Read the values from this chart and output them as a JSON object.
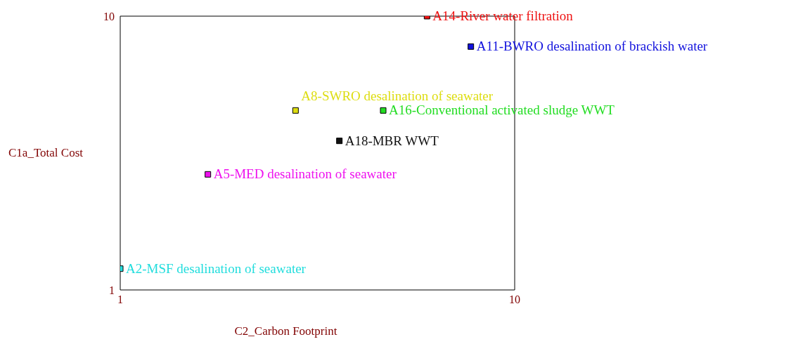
{
  "chart_data": {
    "type": "scatter",
    "xlabel": "C2_Carbon Footprint",
    "ylabel": "C1a_Total Cost",
    "xlim": [
      1,
      10
    ],
    "ylim": [
      1,
      10
    ],
    "xticks": [
      1,
      10
    ],
    "yticks": [
      1,
      10
    ],
    "grid": false,
    "legend": false,
    "marker": "square",
    "series": [
      {
        "name": "A14-River water filtration",
        "color": "#ee1111",
        "x": [
          8.0
        ],
        "values": [
          10.0
        ]
      },
      {
        "name": "A11-BWRO desalination of brackish water",
        "color": "#1111dd",
        "x": [
          9.0
        ],
        "values": [
          9.0
        ]
      },
      {
        "name": "A8-SWRO desalination of seawater",
        "color": "#dddd11",
        "x": [
          5.0
        ],
        "values": [
          6.9
        ]
      },
      {
        "name": "A16-Conventional activated sludge WWT",
        "color": "#22dd22",
        "x": [
          7.0
        ],
        "values": [
          6.9
        ]
      },
      {
        "name": "A18-MBR WWT",
        "color": "#111111",
        "x": [
          6.0
        ],
        "values": [
          5.9
        ]
      },
      {
        "name": "A5-MED desalination of seawater",
        "color": "#ee11ee",
        "x": [
          3.0
        ],
        "values": [
          4.8
        ]
      },
      {
        "name": "A2-MSF desalination of seawater",
        "color": "#22dddd",
        "x": [
          1.0
        ],
        "values": [
          1.7
        ]
      }
    ]
  }
}
